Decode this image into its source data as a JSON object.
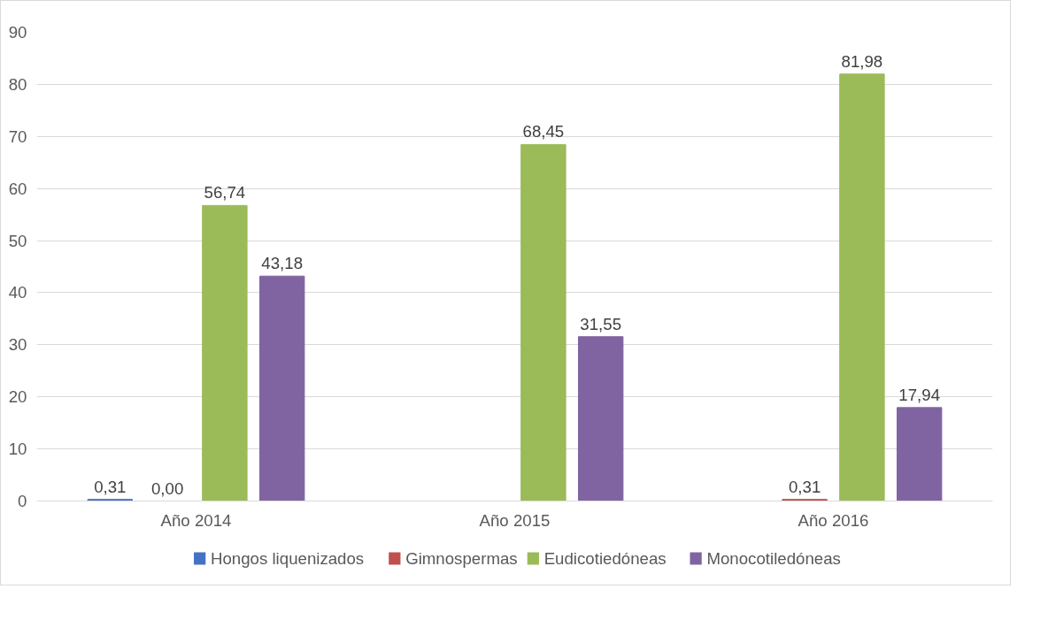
{
  "chart_data": {
    "type": "bar",
    "categories": [
      "Año 2014",
      "Año 2015",
      "Año 2016"
    ],
    "series": [
      {
        "name": "Hongos liquenizados",
        "color": "#4472c4",
        "values": [
          0.31,
          null,
          null
        ],
        "value_labels": [
          "0,31",
          null,
          null
        ]
      },
      {
        "name": "Gimnospermas",
        "color": "#c0504d",
        "values": [
          0.0,
          null,
          0.31
        ],
        "value_labels": [
          "0,00",
          null,
          "0,31"
        ]
      },
      {
        "name": "Eudicotiedóneas",
        "color": "#9bbb59",
        "values": [
          56.74,
          68.45,
          81.98
        ],
        "value_labels": [
          "56,74",
          "68,45",
          "81,98"
        ]
      },
      {
        "name": "Monocotiledóneas",
        "color": "#8064a2",
        "values": [
          43.18,
          31.55,
          17.94
        ],
        "value_labels": [
          "43,18",
          "31,55",
          "17,94"
        ]
      }
    ],
    "ylim": [
      0,
      90
    ],
    "yticks": [
      0,
      10,
      20,
      30,
      40,
      50,
      60,
      70,
      80,
      90
    ],
    "grid": "y",
    "legend": "bottom"
  }
}
